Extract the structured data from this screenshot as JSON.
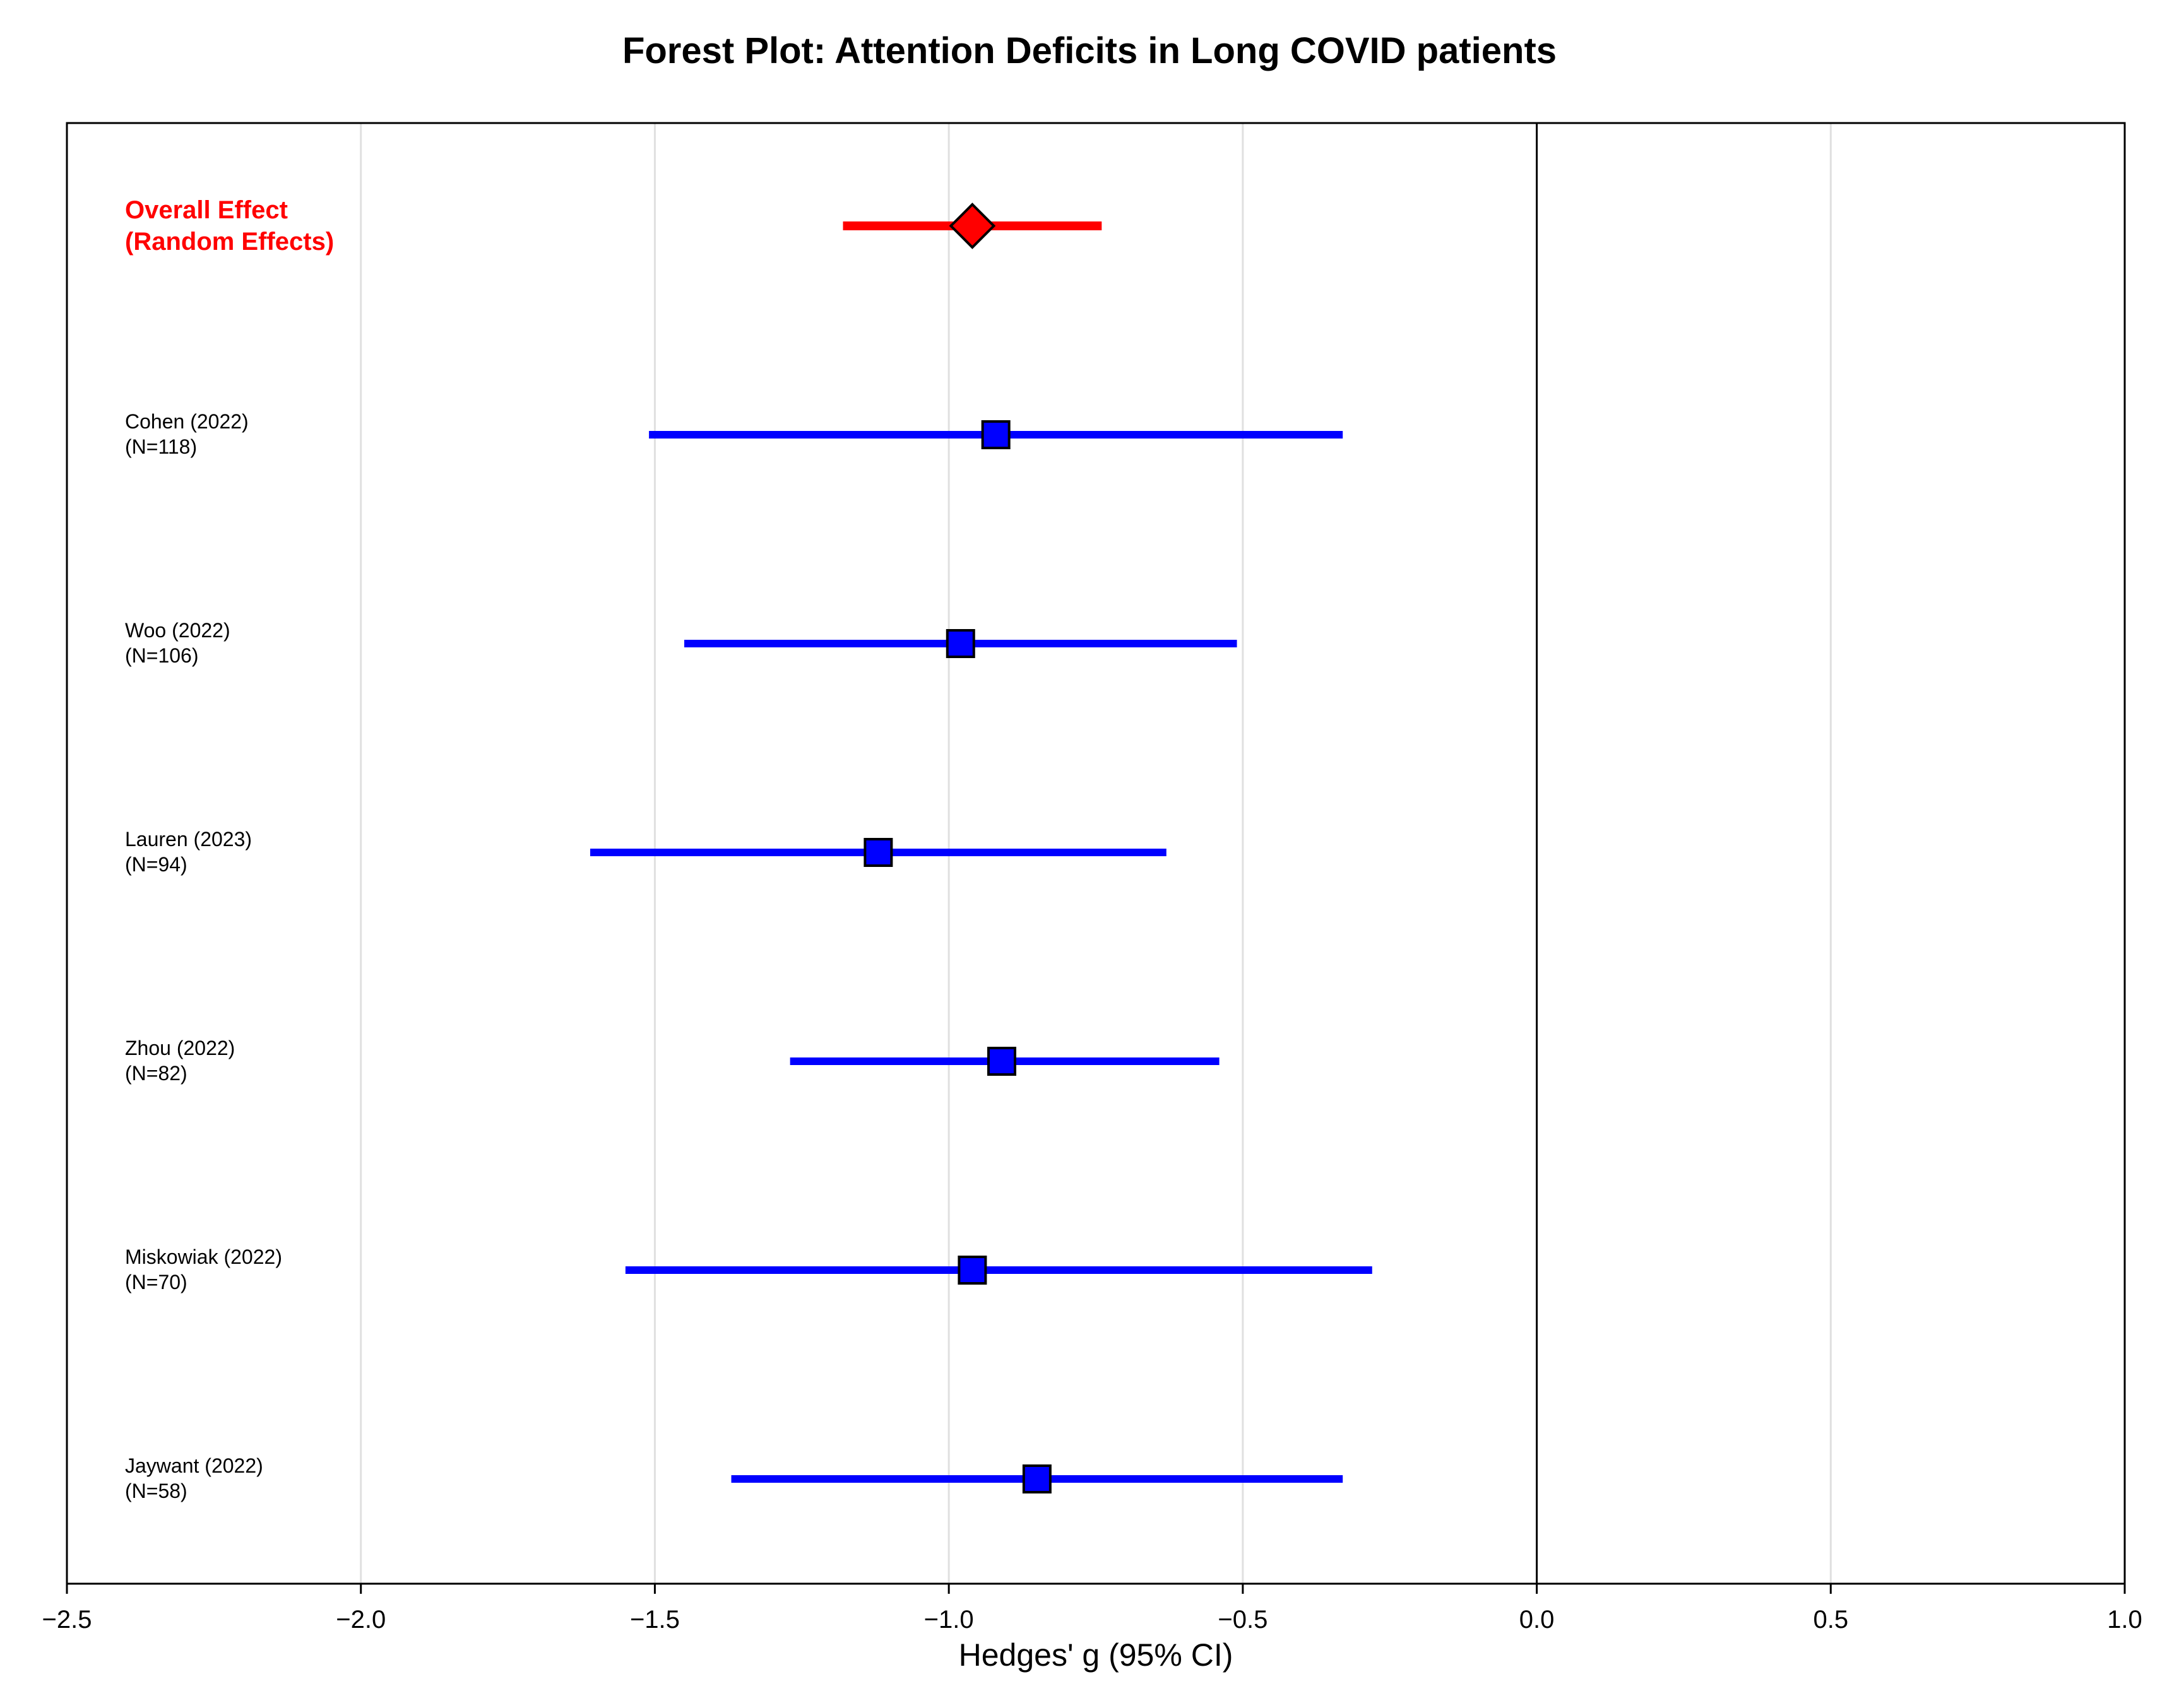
{
  "chart_data": {
    "type": "forest",
    "title": "Forest Plot: Attention Deficits in Long COVID patients",
    "xlabel": "Hedges' g (95% CI)",
    "xlim": [
      -2.5,
      1.0
    ],
    "xticks": [
      -2.5,
      -2.0,
      -1.5,
      -1.0,
      -0.5,
      0.0,
      0.5,
      1.0
    ],
    "xtick_labels": [
      "−2.5",
      "−2.0",
      "−1.5",
      "−1.0",
      "−0.5",
      "0.0",
      "0.5",
      "1.0"
    ],
    "grid": "vertical",
    "reference_line": 0.0,
    "overall": {
      "label_line1": "Overall Effect",
      "label_line2": "(Random Effects)",
      "estimate": -0.96,
      "ci_low": -1.18,
      "ci_high": -0.74,
      "color": "#ff0000"
    },
    "studies": [
      {
        "name": "Cohen (2022)",
        "n_label": "(N=118)",
        "estimate": -0.92,
        "ci_low": -1.51,
        "ci_high": -0.33
      },
      {
        "name": "Woo (2022)",
        "n_label": "(N=106)",
        "estimate": -0.98,
        "ci_low": -1.45,
        "ci_high": -0.51
      },
      {
        "name": "Lauren (2023)",
        "n_label": "(N=94)",
        "estimate": -1.12,
        "ci_low": -1.61,
        "ci_high": -0.63
      },
      {
        "name": "Zhou (2022)",
        "n_label": "(N=82)",
        "estimate": -0.91,
        "ci_low": -1.27,
        "ci_high": -0.54
      },
      {
        "name": "Miskowiak (2022)",
        "n_label": "(N=70)",
        "estimate": -0.96,
        "ci_low": -1.55,
        "ci_high": -0.28
      },
      {
        "name": "Jaywant (2022)",
        "n_label": "(N=58)",
        "estimate": -0.85,
        "ci_low": -1.37,
        "ci_high": -0.33
      }
    ],
    "study_color": "#0000ff"
  }
}
